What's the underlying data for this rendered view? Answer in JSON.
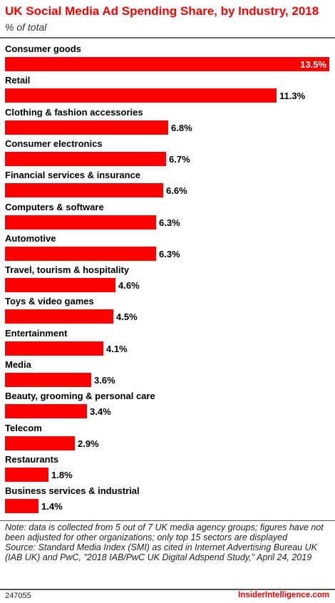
{
  "header": {
    "title": "UK Social Media Ad Spending Share, by Industry, 2018",
    "subtitle": "% of total"
  },
  "chart_data": {
    "type": "bar",
    "orientation": "horizontal",
    "title": "UK Social Media Ad Spending Share, by Industry, 2018",
    "subtitle": "% of total",
    "categories": [
      "Consumer goods",
      "Retail",
      "Clothing & fashion accessories",
      "Consumer electronics",
      "Financial services & insurance",
      "Computers & software",
      "Automotive",
      "Travel, tourism & hospitality",
      "Toys & video games",
      "Entertainment",
      "Media",
      "Beauty, grooming & personal care",
      "Telecom",
      "Restaurants",
      "Business services & industrial"
    ],
    "values": [
      13.5,
      11.3,
      6.8,
      6.7,
      6.6,
      6.3,
      6.3,
      4.6,
      4.5,
      4.1,
      3.6,
      3.4,
      2.9,
      1.8,
      1.4
    ],
    "value_labels": [
      "13.5%",
      "11.3%",
      "6.8%",
      "6.7%",
      "6.6%",
      "6.3%",
      "6.3%",
      "4.6%",
      "4.5%",
      "4.1%",
      "3.6%",
      "3.4%",
      "2.9%",
      "1.8%",
      "1.4%"
    ],
    "xlim": [
      0,
      13.5
    ],
    "bar_color": "#ff0000",
    "grid": false,
    "legend": "none"
  },
  "footer": {
    "note": "Note: data is collected from 5 out of 7 UK media agency  groups; figures have not been adjusted for other organizations; only top 15 sectors are displayed",
    "source": "Source: Standard Media Index (SMI) as cited in Internet Advertising Bureau UK (IAB UK) and PwC, \"2018 IAB/PwC UK Digital Adspend Study,\" April 24, 2019",
    "chart_id": "247055",
    "brand": "InsiderIntelligence.com"
  }
}
